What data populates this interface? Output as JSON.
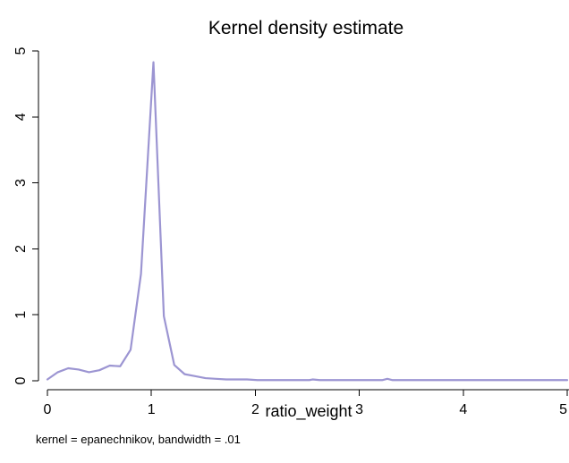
{
  "chart_data": {
    "type": "line",
    "title": "Kernel density estimate",
    "xlabel": "ratio_weight",
    "ylabel": "",
    "note": "kernel = epanechnikov, bandwidth = .01",
    "xlim": [
      0,
      5
    ],
    "ylim": [
      0,
      5
    ],
    "xticks": [
      "0",
      "1",
      "2",
      "3",
      "4",
      "5"
    ],
    "yticks": [
      "0",
      "1",
      "2",
      "3",
      "4",
      "5"
    ],
    "grid": false,
    "legend": "none",
    "line_color": "#9c95d2",
    "series": [
      {
        "x": [
          0.0,
          0.1,
          0.2,
          0.3,
          0.4,
          0.5,
          0.6,
          0.7,
          0.8,
          0.9,
          1.02,
          1.12,
          1.22,
          1.32,
          1.42,
          1.52,
          1.62,
          1.72,
          1.82,
          1.92,
          2.02,
          2.12,
          2.22,
          2.32,
          2.42,
          2.52,
          2.55,
          2.62,
          2.72,
          2.82,
          2.92,
          3.02,
          3.12,
          3.22,
          3.27,
          3.32,
          3.42,
          3.52,
          3.62,
          3.72,
          3.82,
          3.92,
          4.02,
          4.12,
          4.22,
          4.32,
          4.42,
          4.52,
          4.62,
          4.72,
          4.82,
          4.92,
          5.0
        ],
        "y": [
          0.02,
          0.13,
          0.19,
          0.17,
          0.13,
          0.16,
          0.23,
          0.22,
          0.47,
          1.62,
          4.83,
          0.98,
          0.24,
          0.1,
          0.07,
          0.04,
          0.03,
          0.02,
          0.02,
          0.02,
          0.01,
          0.01,
          0.01,
          0.01,
          0.01,
          0.01,
          0.02,
          0.01,
          0.01,
          0.01,
          0.01,
          0.01,
          0.01,
          0.01,
          0.03,
          0.01,
          0.01,
          0.01,
          0.01,
          0.01,
          0.01,
          0.01,
          0.01,
          0.01,
          0.01,
          0.01,
          0.01,
          0.01,
          0.01,
          0.01,
          0.01,
          0.01,
          0.01
        ]
      }
    ]
  }
}
